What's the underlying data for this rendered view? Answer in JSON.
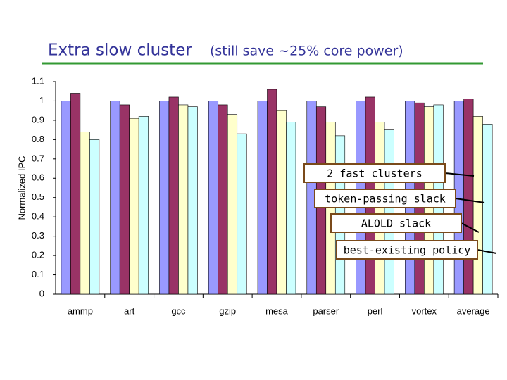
{
  "chart_data": {
    "type": "bar",
    "title": "Extra slow cluster",
    "subtitle": "(still save ~25% core power)",
    "y_label": "Normalized IPC",
    "categories": [
      "ammp",
      "art",
      "gcc",
      "gzip",
      "mesa",
      "parser",
      "perl",
      "vortex",
      "average"
    ],
    "series": [
      {
        "name": "2 fast clusters",
        "color": "#9999ff",
        "values": [
          1,
          1,
          1,
          1,
          1,
          1,
          1,
          1,
          1
        ]
      },
      {
        "name": "token-passing slack",
        "color": "#993366",
        "values": [
          1.04,
          0.98,
          1.02,
          0.98,
          1.06,
          0.97,
          1.02,
          0.99,
          1.01
        ]
      },
      {
        "name": "ALOLD slack",
        "color": "#ffffcc",
        "values": [
          0.84,
          0.91,
          0.98,
          0.93,
          0.95,
          0.89,
          0.89,
          0.97,
          0.92
        ]
      },
      {
        "name": "best-existing policy",
        "color": "#ccffff",
        "values": [
          0.8,
          0.92,
          0.97,
          0.83,
          0.89,
          0.82,
          0.85,
          0.98,
          0.88
        ]
      }
    ],
    "ylim": [
      0,
      1.1
    ],
    "yticks": [
      0,
      0.1,
      0.2,
      0.3,
      0.4,
      0.5,
      0.6,
      0.7,
      0.8,
      0.9,
      1,
      1.1
    ]
  }
}
